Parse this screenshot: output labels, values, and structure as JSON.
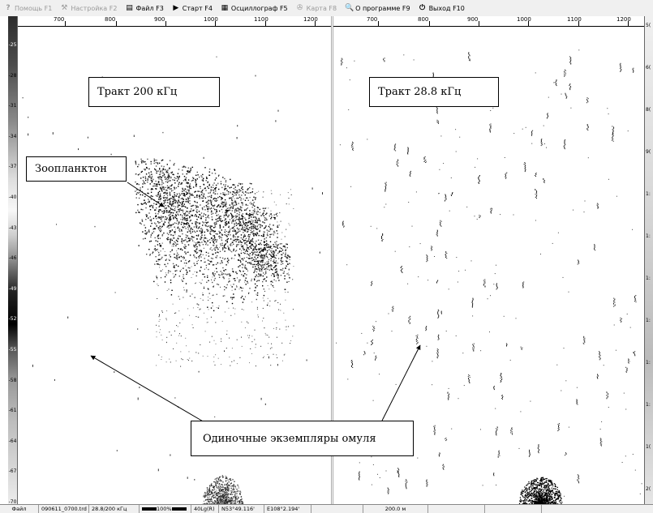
{
  "menu": [
    {
      "key": "help",
      "icon": "?",
      "label": "Помощь F1",
      "enabled": false
    },
    {
      "key": "settings",
      "icon": "⚒",
      "label": "Настройка F2",
      "enabled": false
    },
    {
      "key": "file",
      "icon": "▤",
      "label": "Файл F3",
      "enabled": true
    },
    {
      "key": "start",
      "icon": "▶",
      "label": "Старт F4",
      "enabled": true
    },
    {
      "key": "oscilloscope",
      "icon": "▦",
      "label": "Осциллограф F5",
      "enabled": true
    },
    {
      "key": "map",
      "icon": "✇",
      "label": "Карта F8",
      "enabled": false
    },
    {
      "key": "about",
      "icon": "🔍",
      "label": "О программе F9",
      "enabled": true
    },
    {
      "key": "exit",
      "icon": "⏻",
      "label": "Выход F10",
      "enabled": true
    }
  ],
  "ruler_labels": [
    "700",
    "800",
    "900",
    "1000",
    "1100",
    "1200"
  ],
  "depth_left": [
    "-25",
    "-28",
    "-31",
    "-34",
    "-37",
    "-40",
    "-43",
    "-46",
    "-49",
    "-52",
    "-55",
    "-58",
    "-61",
    "-64",
    "-67",
    "-70"
  ],
  "depth_right": [
    "5(",
    "6(",
    "8(",
    "9(",
    "1:",
    "1:",
    "1:",
    "1:",
    "1:",
    "1:",
    "1(",
    "2("
  ],
  "annotations": {
    "tract_200": "Тракт 200 кГц",
    "tract_28": "Тракт 28.8  кГц",
    "zooplankton": "Зоопланктон",
    "single_omul": "Одиночные экземпляры омуля"
  },
  "status": {
    "file_label": "Файл",
    "file_name": "090611_0700.trd",
    "freq": "28.8/200 кГц",
    "gain": "100%",
    "tvg": "40Lg(R)",
    "latitude": "N53°49.116'",
    "longitude": "E108°2.194'",
    "range": "200.0 м"
  }
}
